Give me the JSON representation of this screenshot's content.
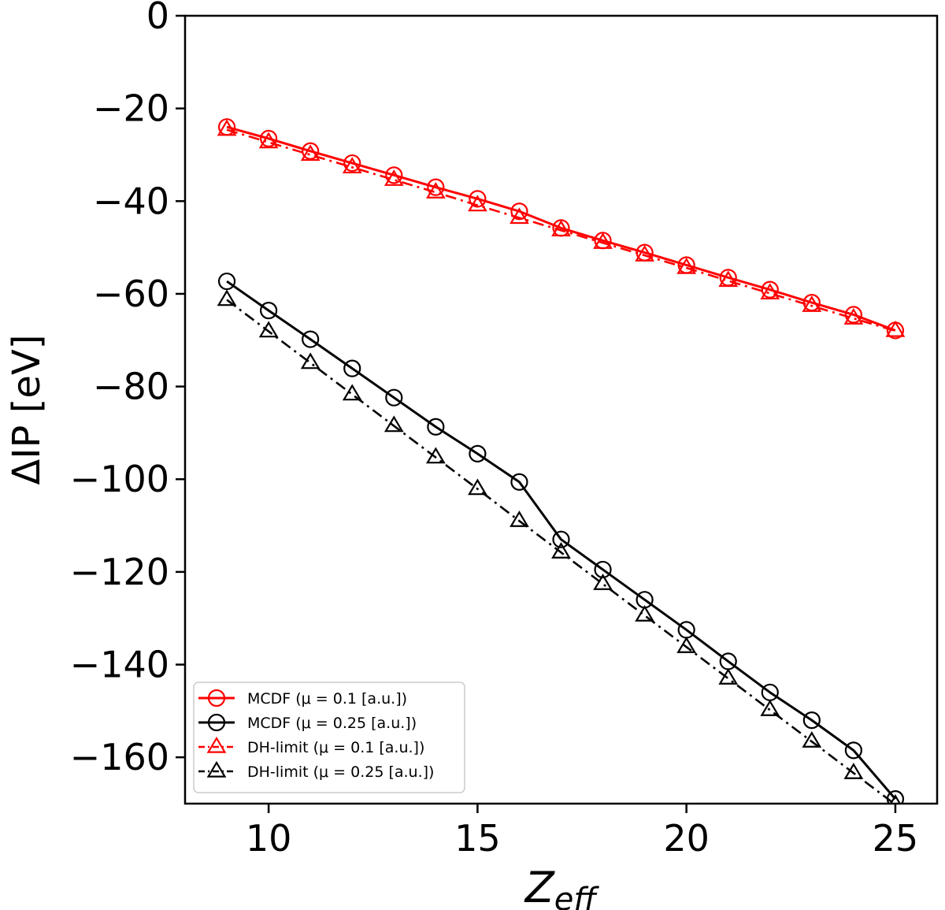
{
  "chart_data": {
    "type": "line",
    "xlabel_base": "Z",
    "xlabel_sub": "eff",
    "ylabel": "ΔIP [eV]",
    "xlim": [
      8,
      26
    ],
    "ylim": [
      -170,
      0
    ],
    "xticks": [
      10,
      15,
      20,
      25
    ],
    "yticks": [
      0,
      -20,
      -40,
      -60,
      -80,
      -100,
      -120,
      -140,
      -160
    ],
    "xtick_labels": [
      "10",
      "15",
      "20",
      "25"
    ],
    "ytick_labels": [
      "0",
      "−20",
      "−40",
      "−60",
      "−80",
      "−100",
      "−120",
      "−140",
      "−160"
    ],
    "legend_position": "lower-left",
    "grid": false,
    "x": [
      9,
      10,
      11,
      12,
      13,
      14,
      15,
      16,
      17,
      18,
      19,
      20,
      21,
      22,
      23,
      24,
      25
    ],
    "series": [
      {
        "name": "MCDF (μ = 0.1 [a.u.])",
        "color": "#ff0000",
        "line": "solid",
        "marker": "circle",
        "values": [
          -24,
          -26.5,
          -29.2,
          -31.8,
          -34.4,
          -37.0,
          -39.5,
          -42.2,
          -45.8,
          -48.5,
          -51.1,
          -53.8,
          -56.5,
          -59.1,
          -61.9,
          -64.5,
          -67.9
        ]
      },
      {
        "name": "MCDF (μ = 0.25 [a.u.])",
        "color": "#000000",
        "line": "solid",
        "marker": "circle",
        "values": [
          -57.3,
          -63.6,
          -69.8,
          -76.1,
          -82.4,
          -88.7,
          -94.5,
          -100.6,
          -113.0,
          -119.5,
          -126.0,
          -132.5,
          -139.3,
          -146.0,
          -152.0,
          -158.5,
          -169.0
        ]
      },
      {
        "name": "DH-limit (μ = 0.1 [a.u.])",
        "color": "#ff0000",
        "line": "dashdot",
        "marker": "triangle",
        "values": [
          -24.6,
          -27.3,
          -30.0,
          -32.7,
          -35.4,
          -38.1,
          -40.9,
          -43.6,
          -46.3,
          -49.0,
          -51.7,
          -54.4,
          -57.2,
          -59.9,
          -62.6,
          -65.3,
          -68.0
        ]
      },
      {
        "name": "DH-limit (μ = 0.25 [a.u.])",
        "color": "#000000",
        "line": "dashdot",
        "marker": "triangle",
        "values": [
          -61.3,
          -68.1,
          -74.9,
          -81.7,
          -88.5,
          -95.3,
          -102.1,
          -109.0,
          -115.8,
          -122.6,
          -129.4,
          -136.2,
          -143.0,
          -149.8,
          -156.6,
          -163.4,
          -170.2
        ]
      }
    ]
  }
}
